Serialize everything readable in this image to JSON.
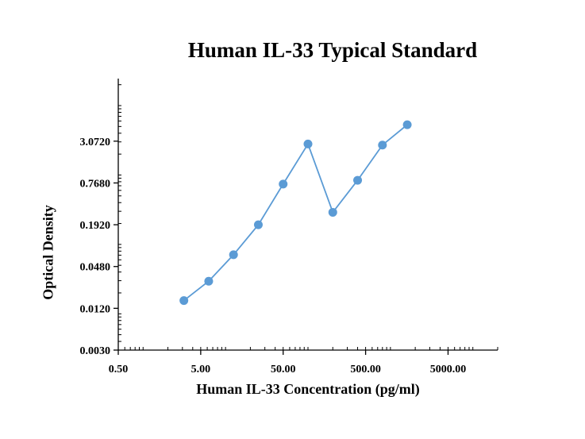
{
  "chart_data": {
    "type": "line",
    "title": "Human IL-33 Typical Standard",
    "xlabel": "Human IL-33 Concentration (pg/ml)",
    "ylabel": "Optical Density",
    "x_scale": "log",
    "y_scale": "log",
    "xlim": [
      0.5,
      20000
    ],
    "ylim": [
      0.003,
      24.5
    ],
    "x_ticks": [
      {
        "value": 0.5,
        "label": "0.50"
      },
      {
        "value": 5,
        "label": "5.00"
      },
      {
        "value": 50,
        "label": "50.00"
      },
      {
        "value": 500,
        "label": "500.00"
      },
      {
        "value": 5000,
        "label": "5000.00"
      }
    ],
    "y_ticks": [
      {
        "value": 0.003,
        "label": "0.0030"
      },
      {
        "value": 0.012,
        "label": "0.0120"
      },
      {
        "value": 0.048,
        "label": "0.0480"
      },
      {
        "value": 0.192,
        "label": "0.1920"
      },
      {
        "value": 0.768,
        "label": "0.7680"
      },
      {
        "value": 3.072,
        "label": "3.0720"
      }
    ],
    "grid": false,
    "legend": "none",
    "series": [
      {
        "color": "#5b9bd5",
        "x": [
          3.125,
          6.25,
          12.5,
          25,
          50,
          100,
          200,
          400,
          800,
          1600
        ],
        "points": [
          {
            "x": 3.125,
            "y": 0.0155
          },
          {
            "x": 6.25,
            "y": 0.0295
          },
          {
            "x": 12.5,
            "y": 0.071
          },
          {
            "x": 25,
            "y": 0.192
          },
          {
            "x": 50,
            "y": 0.74
          },
          {
            "x": 100,
            "y": 2.8
          },
          {
            "x": 200,
            "y": 0.29
          },
          {
            "x": 400,
            "y": 0.84
          },
          {
            "x": 800,
            "y": 2.7
          },
          {
            "x": 1600,
            "y": 5.3
          }
        ]
      }
    ]
  }
}
